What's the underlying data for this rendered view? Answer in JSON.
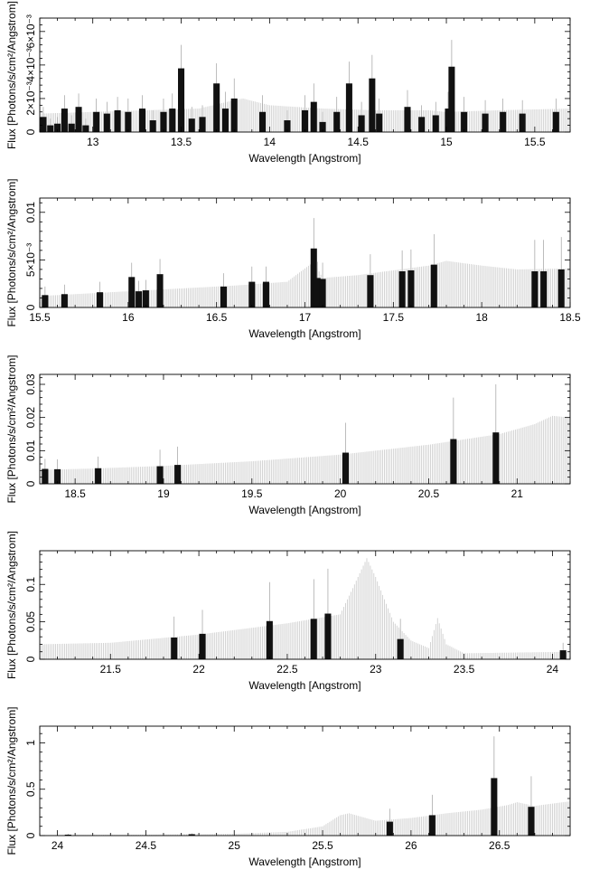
{
  "chart_data": [
    {
      "type": "line",
      "xlabel": "Wavelength [Angstrom]",
      "ylabel": "Flux [Photons/s/cm²/Angstrom]",
      "xlim": [
        12.7,
        15.7
      ],
      "ylim": [
        0,
        0.0068
      ],
      "x_ticks": [
        13,
        13.5,
        14,
        14.5,
        15,
        15.5
      ],
      "x_tick_labels": [
        "13",
        "13.5",
        "14",
        "14.5",
        "15",
        "15.5"
      ],
      "y_ticks": [
        0,
        0.002,
        0.004,
        0.006
      ],
      "y_tick_labels": [
        "0",
        "2×10⁻³",
        "4×10⁻³",
        "6×10⁻³"
      ],
      "model": [
        [
          12.7,
          0.0011
        ],
        [
          13.0,
          0.0012
        ],
        [
          13.3,
          0.0013
        ],
        [
          13.6,
          0.0014
        ],
        [
          13.8,
          0.0019
        ],
        [
          13.85,
          0.002
        ],
        [
          14.0,
          0.0016
        ],
        [
          14.3,
          0.0014
        ],
        [
          14.6,
          0.0013
        ],
        [
          14.9,
          0.0013
        ],
        [
          15.0,
          0.0012
        ],
        [
          15.3,
          0.0013
        ],
        [
          15.7,
          0.0014
        ]
      ],
      "data": [
        {
          "x": 12.72,
          "y": 0.0009,
          "err": 0.0006
        },
        {
          "x": 12.76,
          "y": 0.0004,
          "err": 0.0004
        },
        {
          "x": 12.8,
          "y": 0.0005,
          "err": 0.0004
        },
        {
          "x": 12.84,
          "y": 0.0014,
          "err": 0.0008
        },
        {
          "x": 12.88,
          "y": 0.0005,
          "err": 0.0005
        },
        {
          "x": 12.92,
          "y": 0.0015,
          "err": 0.0008
        },
        {
          "x": 12.96,
          "y": 0.0004,
          "err": 0.0004
        },
        {
          "x": 13.02,
          "y": 0.0012,
          "err": 0.0008
        },
        {
          "x": 13.08,
          "y": 0.0011,
          "err": 0.0007
        },
        {
          "x": 13.14,
          "y": 0.0013,
          "err": 0.0008
        },
        {
          "x": 13.2,
          "y": 0.0012,
          "err": 0.0008
        },
        {
          "x": 13.28,
          "y": 0.0014,
          "err": 0.0008
        },
        {
          "x": 13.34,
          "y": 0.0007,
          "err": 0.0006
        },
        {
          "x": 13.4,
          "y": 0.0012,
          "err": 0.0008
        },
        {
          "x": 13.45,
          "y": 0.0014,
          "err": 0.0009
        },
        {
          "x": 13.5,
          "y": 0.0038,
          "err": 0.0014
        },
        {
          "x": 13.56,
          "y": 0.0008,
          "err": 0.0007
        },
        {
          "x": 13.62,
          "y": 0.0009,
          "err": 0.0007
        },
        {
          "x": 13.7,
          "y": 0.0029,
          "err": 0.0012
        },
        {
          "x": 13.75,
          "y": 0.0014,
          "err": 0.001
        },
        {
          "x": 13.8,
          "y": 0.002,
          "err": 0.0012
        },
        {
          "x": 13.96,
          "y": 0.0012,
          "err": 0.001
        },
        {
          "x": 14.1,
          "y": 0.0007,
          "err": 0.0006
        },
        {
          "x": 14.2,
          "y": 0.0013,
          "err": 0.0009
        },
        {
          "x": 14.25,
          "y": 0.0018,
          "err": 0.0011
        },
        {
          "x": 14.3,
          "y": 0.0006,
          "err": 0.0006
        },
        {
          "x": 14.38,
          "y": 0.0012,
          "err": 0.0009
        },
        {
          "x": 14.45,
          "y": 0.0029,
          "err": 0.0013
        },
        {
          "x": 14.52,
          "y": 0.001,
          "err": 0.0008
        },
        {
          "x": 14.58,
          "y": 0.0032,
          "err": 0.0014
        },
        {
          "x": 14.62,
          "y": 0.0011,
          "err": 0.0009
        },
        {
          "x": 14.78,
          "y": 0.0015,
          "err": 0.001
        },
        {
          "x": 14.86,
          "y": 0.0009,
          "err": 0.0007
        },
        {
          "x": 14.94,
          "y": 0.001,
          "err": 0.0008
        },
        {
          "x": 15.01,
          "y": 0.0014,
          "err": 0.001
        },
        {
          "x": 15.03,
          "y": 0.0039,
          "err": 0.0016
        },
        {
          "x": 15.1,
          "y": 0.0012,
          "err": 0.0009
        },
        {
          "x": 15.22,
          "y": 0.0011,
          "err": 0.0008
        },
        {
          "x": 15.32,
          "y": 0.0012,
          "err": 0.0008
        },
        {
          "x": 15.43,
          "y": 0.0011,
          "err": 0.0008
        },
        {
          "x": 15.62,
          "y": 0.0012,
          "err": 0.0008
        }
      ]
    },
    {
      "type": "line",
      "xlabel": "Wavelength [Angstrom]",
      "ylabel": "Flux [Photons/s/cm²/Angstrom]",
      "xlim": [
        15.5,
        18.5
      ],
      "ylim": [
        0,
        0.0115
      ],
      "x_ticks": [
        15.5,
        16,
        16.5,
        17,
        17.5,
        18,
        18.5
      ],
      "x_tick_labels": [
        "15.5",
        "16",
        "16.5",
        "17",
        "17.5",
        "18",
        "18.5"
      ],
      "y_ticks": [
        0,
        0.005,
        0.01
      ],
      "y_tick_labels": [
        "0",
        "5×10⁻³",
        "0.01"
      ],
      "model": [
        [
          15.5,
          0.0012
        ],
        [
          15.8,
          0.0015
        ],
        [
          16.0,
          0.0017
        ],
        [
          16.3,
          0.002
        ],
        [
          16.6,
          0.0023
        ],
        [
          16.9,
          0.0027
        ],
        [
          17.05,
          0.0048
        ],
        [
          17.1,
          0.0031
        ],
        [
          17.3,
          0.0034
        ],
        [
          17.5,
          0.0039
        ],
        [
          17.7,
          0.0044
        ],
        [
          17.8,
          0.0049
        ],
        [
          18.0,
          0.0044
        ],
        [
          18.2,
          0.004
        ],
        [
          18.5,
          0.0041
        ]
      ],
      "data": [
        {
          "x": 15.53,
          "y": 0.0013,
          "err": 0.0009
        },
        {
          "x": 15.64,
          "y": 0.0014,
          "err": 0.001
        },
        {
          "x": 15.84,
          "y": 0.0016,
          "err": 0.0011
        },
        {
          "x": 16.02,
          "y": 0.0032,
          "err": 0.0015
        },
        {
          "x": 16.06,
          "y": 0.0017,
          "err": 0.0011
        },
        {
          "x": 16.1,
          "y": 0.0018,
          "err": 0.0011
        },
        {
          "x": 16.18,
          "y": 0.0035,
          "err": 0.0016
        },
        {
          "x": 16.54,
          "y": 0.0022,
          "err": 0.0014
        },
        {
          "x": 16.7,
          "y": 0.0027,
          "err": 0.0016
        },
        {
          "x": 16.78,
          "y": 0.0027,
          "err": 0.0016
        },
        {
          "x": 17.05,
          "y": 0.0062,
          "err": 0.0032
        },
        {
          "x": 17.07,
          "y": 0.0031,
          "err": 0.0017
        },
        {
          "x": 17.1,
          "y": 0.003,
          "err": 0.0017
        },
        {
          "x": 17.37,
          "y": 0.0034,
          "err": 0.0022
        },
        {
          "x": 17.55,
          "y": 0.0038,
          "err": 0.0022
        },
        {
          "x": 17.6,
          "y": 0.0039,
          "err": 0.0022
        },
        {
          "x": 17.73,
          "y": 0.0045,
          "err": 0.0032
        },
        {
          "x": 18.3,
          "y": 0.0038,
          "err": 0.0033
        },
        {
          "x": 18.35,
          "y": 0.0038,
          "err": 0.0033
        },
        {
          "x": 18.45,
          "y": 0.004,
          "err": 0.0034
        }
      ]
    },
    {
      "type": "line",
      "xlabel": "Wavelength [Angstrom]",
      "ylabel": "Flux [Photons/s/cm²/Angstrom]",
      "xlim": [
        18.3,
        21.3
      ],
      "ylim": [
        0,
        0.033
      ],
      "x_ticks": [
        18.5,
        19,
        19.5,
        20,
        20.5,
        21
      ],
      "x_tick_labels": [
        "18.5",
        "19",
        "19.5",
        "20",
        "20.5",
        "21"
      ],
      "y_ticks": [
        0,
        0.01,
        0.02,
        0.03
      ],
      "y_tick_labels": [
        "0",
        "0.01",
        "0.02",
        "0.03"
      ],
      "model": [
        [
          18.3,
          0.0042
        ],
        [
          18.6,
          0.0046
        ],
        [
          19.0,
          0.0054
        ],
        [
          19.5,
          0.0068
        ],
        [
          20.0,
          0.0088
        ],
        [
          20.5,
          0.0118
        ],
        [
          20.9,
          0.015
        ],
        [
          21.1,
          0.018
        ],
        [
          21.2,
          0.0205
        ],
        [
          21.3,
          0.02
        ]
      ],
      "data": [
        {
          "x": 18.33,
          "y": 0.0045,
          "err": 0.003
        },
        {
          "x": 18.4,
          "y": 0.0044,
          "err": 0.003
        },
        {
          "x": 18.63,
          "y": 0.0047,
          "err": 0.0035
        },
        {
          "x": 18.98,
          "y": 0.0053,
          "err": 0.005
        },
        {
          "x": 19.08,
          "y": 0.0057,
          "err": 0.0055
        },
        {
          "x": 20.03,
          "y": 0.0094,
          "err": 0.009
        },
        {
          "x": 20.64,
          "y": 0.0135,
          "err": 0.0125
        },
        {
          "x": 20.88,
          "y": 0.0155,
          "err": 0.0145
        }
      ]
    },
    {
      "type": "line",
      "xlabel": "Wavelength [Angstrom]",
      "ylabel": "Flux [Photons/s/cm²/Angstrom]",
      "xlim": [
        21.1,
        24.1
      ],
      "ylim": [
        0,
        0.145
      ],
      "x_ticks": [
        21.5,
        22,
        22.5,
        23,
        23.5,
        24
      ],
      "x_tick_labels": [
        "21.5",
        "22",
        "22.5",
        "23",
        "23.5",
        "24"
      ],
      "y_ticks": [
        0,
        0.05,
        0.1
      ],
      "y_tick_labels": [
        "0",
        "0.05",
        "0.1"
      ],
      "model": [
        [
          21.1,
          0.02
        ],
        [
          21.5,
          0.022
        ],
        [
          22.0,
          0.033
        ],
        [
          22.5,
          0.048
        ],
        [
          22.8,
          0.06
        ],
        [
          22.88,
          0.1
        ],
        [
          22.95,
          0.135
        ],
        [
          23.0,
          0.11
        ],
        [
          23.1,
          0.05
        ],
        [
          23.2,
          0.025
        ],
        [
          23.3,
          0.015
        ],
        [
          23.35,
          0.055
        ],
        [
          23.4,
          0.02
        ],
        [
          23.5,
          0.008
        ],
        [
          24.1,
          0.01
        ]
      ],
      "data": [
        {
          "x": 21.86,
          "y": 0.029,
          "err": 0.028
        },
        {
          "x": 22.02,
          "y": 0.034,
          "err": 0.032
        },
        {
          "x": 22.4,
          "y": 0.051,
          "err": 0.052
        },
        {
          "x": 22.65,
          "y": 0.054,
          "err": 0.053
        },
        {
          "x": 22.73,
          "y": 0.061,
          "err": 0.06
        },
        {
          "x": 23.14,
          "y": 0.027,
          "err": 0.027
        },
        {
          "x": 24.06,
          "y": 0.012,
          "err": 0.01
        }
      ]
    },
    {
      "type": "line",
      "xlabel": "Wavelength [Angstrom]",
      "ylabel": "Flux [Photons/s/cm²/Angstrom]",
      "xlim": [
        23.9,
        26.9
      ],
      "ylim": [
        0,
        1.18
      ],
      "x_ticks": [
        24,
        24.5,
        25,
        25.5,
        26,
        26.5
      ],
      "x_tick_labels": [
        "24",
        "24.5",
        "25",
        "25.5",
        "26",
        "26.5"
      ],
      "y_ticks": [
        0,
        0.5,
        1
      ],
      "y_tick_labels": [
        "0",
        "0.5",
        "1"
      ],
      "model": [
        [
          23.9,
          0.005
        ],
        [
          24.5,
          0.01
        ],
        [
          25.0,
          0.02
        ],
        [
          25.3,
          0.04
        ],
        [
          25.5,
          0.1
        ],
        [
          25.6,
          0.22
        ],
        [
          25.65,
          0.24
        ],
        [
          25.8,
          0.16
        ],
        [
          26.0,
          0.19
        ],
        [
          26.2,
          0.24
        ],
        [
          26.4,
          0.28
        ],
        [
          26.55,
          0.33
        ],
        [
          26.6,
          0.36
        ],
        [
          26.7,
          0.32
        ],
        [
          26.9,
          0.37
        ]
      ],
      "data": [
        {
          "x": 24.06,
          "y": 0.01,
          "err": 0.01
        },
        {
          "x": 24.76,
          "y": 0.015,
          "err": 0.01
        },
        {
          "x": 25.88,
          "y": 0.15,
          "err": 0.14
        },
        {
          "x": 26.12,
          "y": 0.22,
          "err": 0.22
        },
        {
          "x": 26.47,
          "y": 0.62,
          "err": 0.45
        },
        {
          "x": 26.68,
          "y": 0.31,
          "err": 0.33
        }
      ]
    }
  ]
}
